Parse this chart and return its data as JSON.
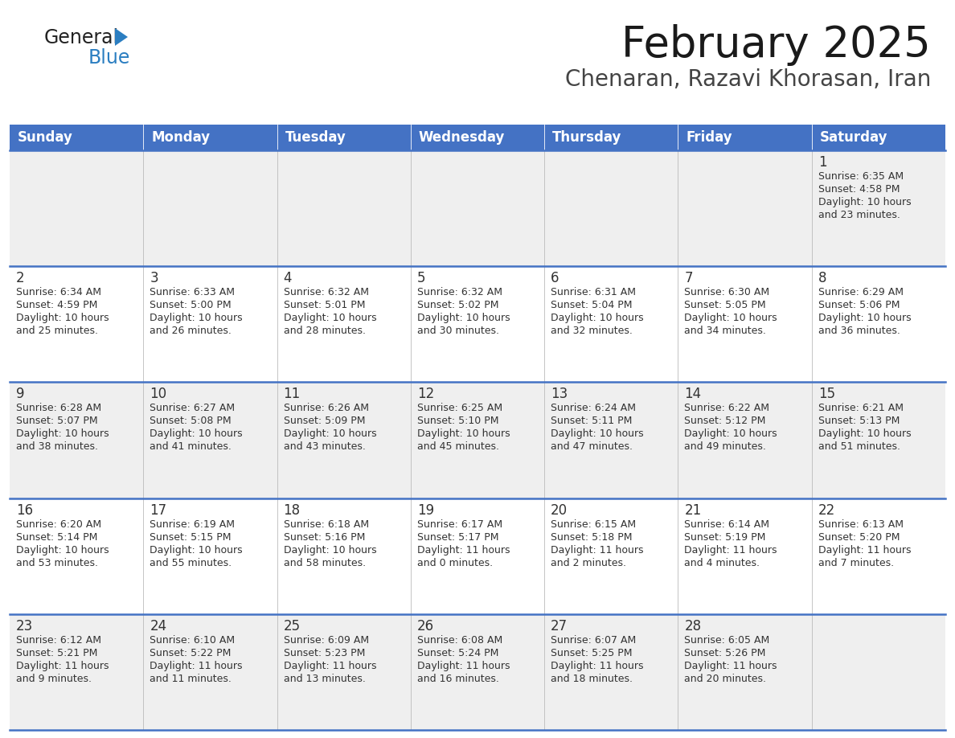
{
  "title": "February 2025",
  "subtitle": "Chenaran, Razavi Khorasan, Iran",
  "header_bg": "#4472C4",
  "header_text_color": "#FFFFFF",
  "cell_bg_odd": "#EFEFEF",
  "cell_bg_even": "#FFFFFF",
  "border_color": "#4472C4",
  "text_color": "#333333",
  "day_headers": [
    "Sunday",
    "Monday",
    "Tuesday",
    "Wednesday",
    "Thursday",
    "Friday",
    "Saturday"
  ],
  "days": [
    {
      "day": 1,
      "col": 6,
      "row": 0,
      "sunrise": "6:35 AM",
      "sunset": "4:58 PM",
      "daylight_hours": 10,
      "daylight_minutes": 23
    },
    {
      "day": 2,
      "col": 0,
      "row": 1,
      "sunrise": "6:34 AM",
      "sunset": "4:59 PM",
      "daylight_hours": 10,
      "daylight_minutes": 25
    },
    {
      "day": 3,
      "col": 1,
      "row": 1,
      "sunrise": "6:33 AM",
      "sunset": "5:00 PM",
      "daylight_hours": 10,
      "daylight_minutes": 26
    },
    {
      "day": 4,
      "col": 2,
      "row": 1,
      "sunrise": "6:32 AM",
      "sunset": "5:01 PM",
      "daylight_hours": 10,
      "daylight_minutes": 28
    },
    {
      "day": 5,
      "col": 3,
      "row": 1,
      "sunrise": "6:32 AM",
      "sunset": "5:02 PM",
      "daylight_hours": 10,
      "daylight_minutes": 30
    },
    {
      "day": 6,
      "col": 4,
      "row": 1,
      "sunrise": "6:31 AM",
      "sunset": "5:04 PM",
      "daylight_hours": 10,
      "daylight_minutes": 32
    },
    {
      "day": 7,
      "col": 5,
      "row": 1,
      "sunrise": "6:30 AM",
      "sunset": "5:05 PM",
      "daylight_hours": 10,
      "daylight_minutes": 34
    },
    {
      "day": 8,
      "col": 6,
      "row": 1,
      "sunrise": "6:29 AM",
      "sunset": "5:06 PM",
      "daylight_hours": 10,
      "daylight_minutes": 36
    },
    {
      "day": 9,
      "col": 0,
      "row": 2,
      "sunrise": "6:28 AM",
      "sunset": "5:07 PM",
      "daylight_hours": 10,
      "daylight_minutes": 38
    },
    {
      "day": 10,
      "col": 1,
      "row": 2,
      "sunrise": "6:27 AM",
      "sunset": "5:08 PM",
      "daylight_hours": 10,
      "daylight_minutes": 41
    },
    {
      "day": 11,
      "col": 2,
      "row": 2,
      "sunrise": "6:26 AM",
      "sunset": "5:09 PM",
      "daylight_hours": 10,
      "daylight_minutes": 43
    },
    {
      "day": 12,
      "col": 3,
      "row": 2,
      "sunrise": "6:25 AM",
      "sunset": "5:10 PM",
      "daylight_hours": 10,
      "daylight_minutes": 45
    },
    {
      "day": 13,
      "col": 4,
      "row": 2,
      "sunrise": "6:24 AM",
      "sunset": "5:11 PM",
      "daylight_hours": 10,
      "daylight_minutes": 47
    },
    {
      "day": 14,
      "col": 5,
      "row": 2,
      "sunrise": "6:22 AM",
      "sunset": "5:12 PM",
      "daylight_hours": 10,
      "daylight_minutes": 49
    },
    {
      "day": 15,
      "col": 6,
      "row": 2,
      "sunrise": "6:21 AM",
      "sunset": "5:13 PM",
      "daylight_hours": 10,
      "daylight_minutes": 51
    },
    {
      "day": 16,
      "col": 0,
      "row": 3,
      "sunrise": "6:20 AM",
      "sunset": "5:14 PM",
      "daylight_hours": 10,
      "daylight_minutes": 53
    },
    {
      "day": 17,
      "col": 1,
      "row": 3,
      "sunrise": "6:19 AM",
      "sunset": "5:15 PM",
      "daylight_hours": 10,
      "daylight_minutes": 55
    },
    {
      "day": 18,
      "col": 2,
      "row": 3,
      "sunrise": "6:18 AM",
      "sunset": "5:16 PM",
      "daylight_hours": 10,
      "daylight_minutes": 58
    },
    {
      "day": 19,
      "col": 3,
      "row": 3,
      "sunrise": "6:17 AM",
      "sunset": "5:17 PM",
      "daylight_hours": 11,
      "daylight_minutes": 0
    },
    {
      "day": 20,
      "col": 4,
      "row": 3,
      "sunrise": "6:15 AM",
      "sunset": "5:18 PM",
      "daylight_hours": 11,
      "daylight_minutes": 2
    },
    {
      "day": 21,
      "col": 5,
      "row": 3,
      "sunrise": "6:14 AM",
      "sunset": "5:19 PM",
      "daylight_hours": 11,
      "daylight_minutes": 4
    },
    {
      "day": 22,
      "col": 6,
      "row": 3,
      "sunrise": "6:13 AM",
      "sunset": "5:20 PM",
      "daylight_hours": 11,
      "daylight_minutes": 7
    },
    {
      "day": 23,
      "col": 0,
      "row": 4,
      "sunrise": "6:12 AM",
      "sunset": "5:21 PM",
      "daylight_hours": 11,
      "daylight_minutes": 9
    },
    {
      "day": 24,
      "col": 1,
      "row": 4,
      "sunrise": "6:10 AM",
      "sunset": "5:22 PM",
      "daylight_hours": 11,
      "daylight_minutes": 11
    },
    {
      "day": 25,
      "col": 2,
      "row": 4,
      "sunrise": "6:09 AM",
      "sunset": "5:23 PM",
      "daylight_hours": 11,
      "daylight_minutes": 13
    },
    {
      "day": 26,
      "col": 3,
      "row": 4,
      "sunrise": "6:08 AM",
      "sunset": "5:24 PM",
      "daylight_hours": 11,
      "daylight_minutes": 16
    },
    {
      "day": 27,
      "col": 4,
      "row": 4,
      "sunrise": "6:07 AM",
      "sunset": "5:25 PM",
      "daylight_hours": 11,
      "daylight_minutes": 18
    },
    {
      "day": 28,
      "col": 5,
      "row": 4,
      "sunrise": "6:05 AM",
      "sunset": "5:26 PM",
      "daylight_hours": 11,
      "daylight_minutes": 20
    }
  ],
  "num_rows": 5,
  "num_cols": 7,
  "logo_general_color": "#222222",
  "logo_blue_color": "#2B7EC1",
  "logo_triangle_color": "#2B7EC1",
  "title_fontsize": 38,
  "subtitle_fontsize": 20,
  "header_fontsize": 12,
  "day_num_fontsize": 12,
  "cell_fontsize": 9
}
